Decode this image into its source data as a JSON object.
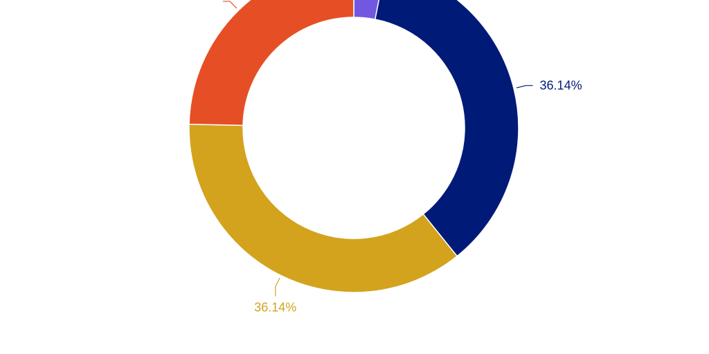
{
  "chart_data": {
    "type": "pie",
    "variant": "donut",
    "legend": "none",
    "series": [
      {
        "value": 3.08,
        "color": "#7257e0"
      },
      {
        "value": 36.14,
        "label": "36.14%",
        "color": "#001a78"
      },
      {
        "value": 36.14,
        "label": "36.14%",
        "color": "#d3a31d"
      },
      {
        "value": 24.64,
        "color": "#e64f25"
      }
    ]
  }
}
